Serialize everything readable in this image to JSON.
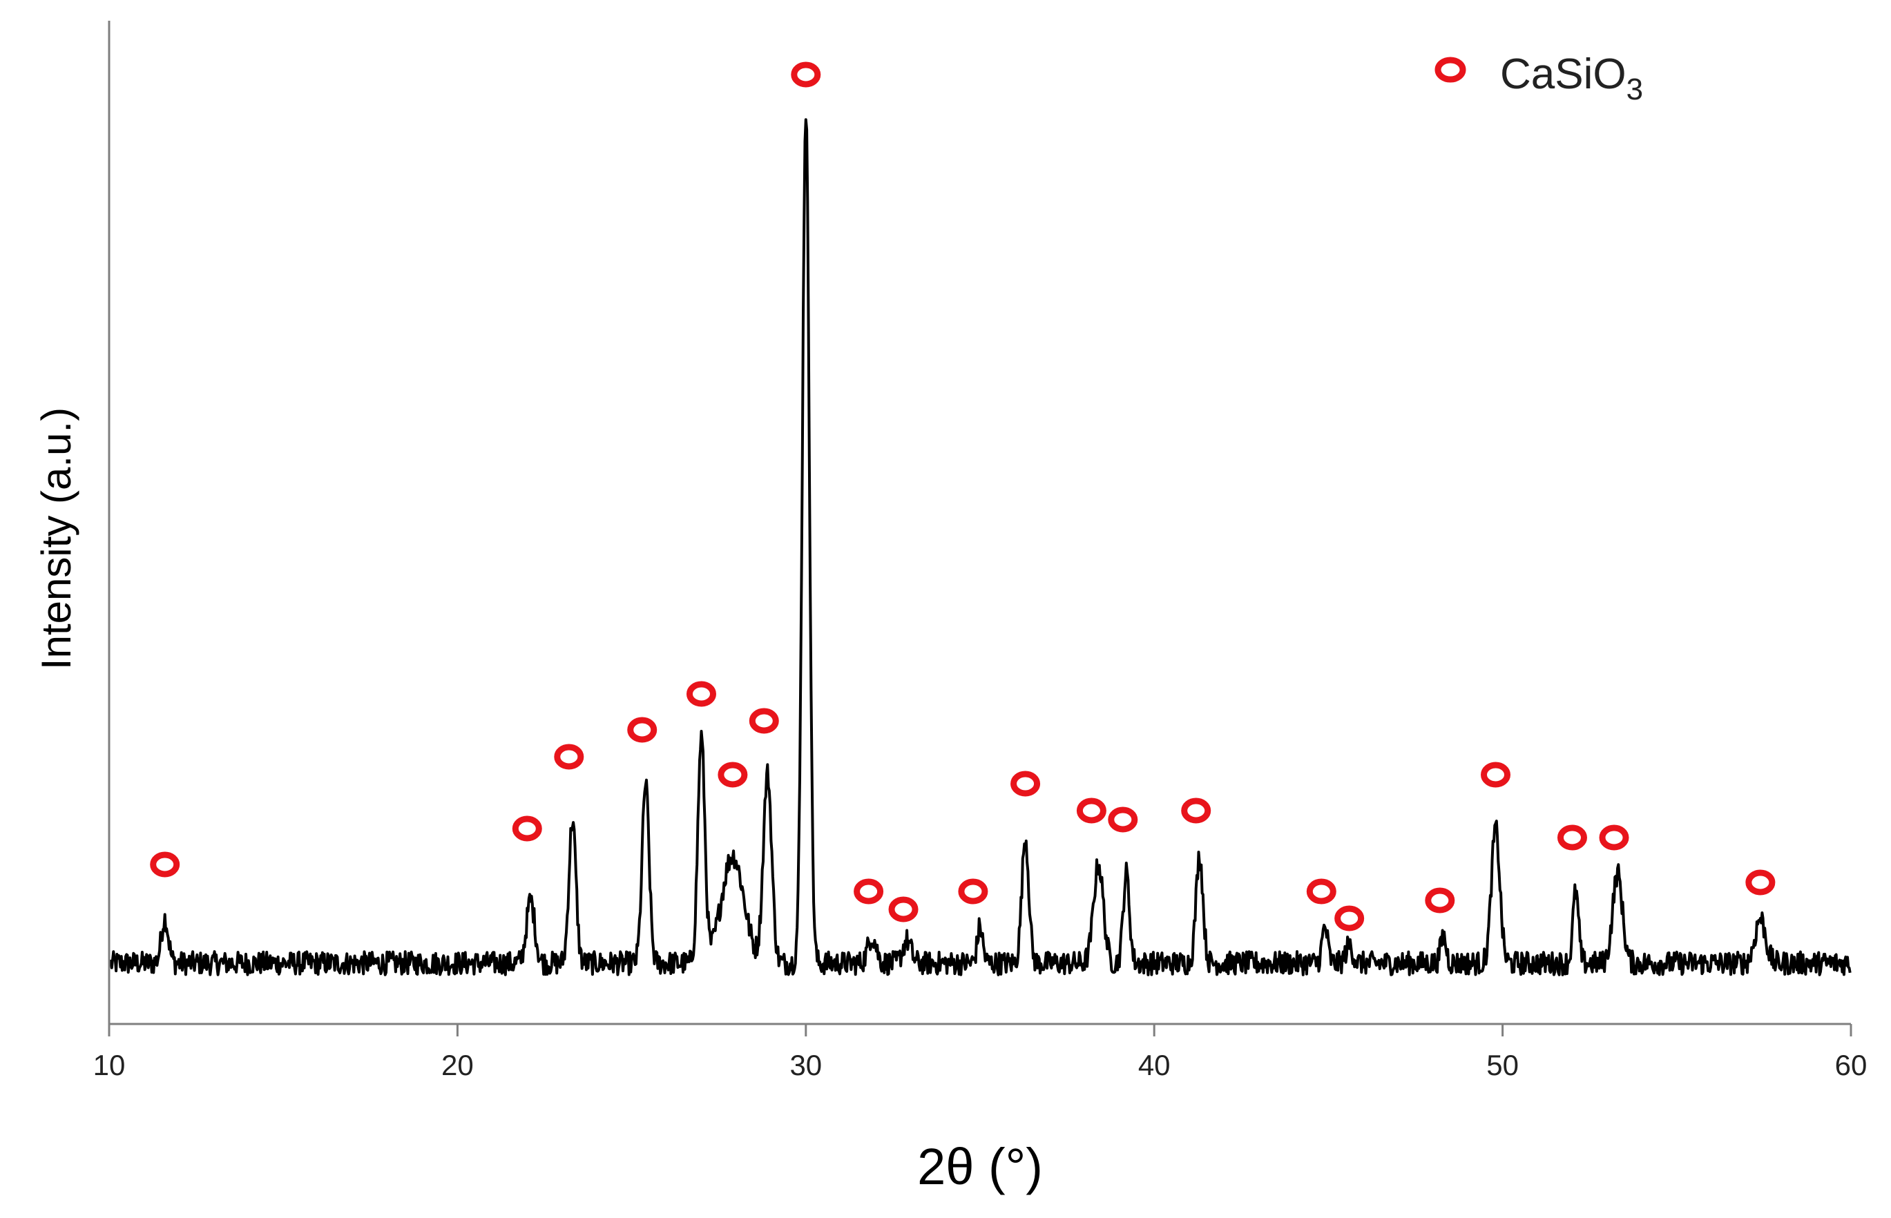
{
  "chart_data": {
    "type": "line",
    "xlabel": "2θ (°)",
    "ylabel": "Intensity  (a.u.)",
    "xlim": [
      10,
      60
    ],
    "xticks": [
      10,
      20,
      30,
      40,
      50,
      60
    ],
    "yticks": [],
    "grid": false,
    "legend_position": "top-right",
    "colors": {
      "line": "#000000",
      "marker": "#e8141b",
      "axis": "#7f7f7f"
    },
    "series": [
      {
        "type": "line",
        "baseline": 0.05,
        "noise": 0.013,
        "peaks": [
          {
            "x": 11.6,
            "h": 0.05,
            "w": 0.1
          },
          {
            "x": 22.1,
            "h": 0.07,
            "w": 0.12
          },
          {
            "x": 23.3,
            "h": 0.16,
            "w": 0.1
          },
          {
            "x": 25.4,
            "h": 0.2,
            "w": 0.1
          },
          {
            "x": 27.0,
            "h": 0.25,
            "w": 0.1
          },
          {
            "x": 27.9,
            "h": 0.12,
            "w": 0.32
          },
          {
            "x": 28.9,
            "h": 0.21,
            "w": 0.12
          },
          {
            "x": 30.0,
            "h": 0.95,
            "w": 0.1
          },
          {
            "x": 31.9,
            "h": 0.03,
            "w": 0.12
          },
          {
            "x": 32.9,
            "h": 0.025,
            "w": 0.12
          },
          {
            "x": 35.0,
            "h": 0.04,
            "w": 0.08
          },
          {
            "x": 36.3,
            "h": 0.14,
            "w": 0.1
          },
          {
            "x": 38.4,
            "h": 0.11,
            "w": 0.14
          },
          {
            "x": 39.2,
            "h": 0.1,
            "w": 0.09
          },
          {
            "x": 41.3,
            "h": 0.12,
            "w": 0.1
          },
          {
            "x": 44.9,
            "h": 0.04,
            "w": 0.08
          },
          {
            "x": 45.6,
            "h": 0.02,
            "w": 0.1
          },
          {
            "x": 48.3,
            "h": 0.03,
            "w": 0.08
          },
          {
            "x": 49.8,
            "h": 0.15,
            "w": 0.12
          },
          {
            "x": 52.1,
            "h": 0.08,
            "w": 0.08
          },
          {
            "x": 53.3,
            "h": 0.1,
            "w": 0.14
          },
          {
            "x": 57.4,
            "h": 0.05,
            "w": 0.15
          }
        ]
      },
      {
        "name": "CaSiO3",
        "type": "marker",
        "points": [
          {
            "x": 11.6,
            "y": 0.16
          },
          {
            "x": 22.0,
            "y": 0.2
          },
          {
            "x": 23.2,
            "y": 0.28
          },
          {
            "x": 25.3,
            "y": 0.31
          },
          {
            "x": 27.0,
            "y": 0.35
          },
          {
            "x": 27.9,
            "y": 0.26
          },
          {
            "x": 28.8,
            "y": 0.32
          },
          {
            "x": 30.0,
            "y": 1.04
          },
          {
            "x": 31.8,
            "y": 0.13
          },
          {
            "x": 32.8,
            "y": 0.11
          },
          {
            "x": 34.8,
            "y": 0.13
          },
          {
            "x": 36.3,
            "y": 0.25
          },
          {
            "x": 38.2,
            "y": 0.22
          },
          {
            "x": 39.1,
            "y": 0.21
          },
          {
            "x": 41.2,
            "y": 0.22
          },
          {
            "x": 44.8,
            "y": 0.13
          },
          {
            "x": 45.6,
            "y": 0.1
          },
          {
            "x": 48.2,
            "y": 0.12
          },
          {
            "x": 49.8,
            "y": 0.26
          },
          {
            "x": 52.0,
            "y": 0.19
          },
          {
            "x": 53.2,
            "y": 0.19
          },
          {
            "x": 57.4,
            "y": 0.14
          }
        ]
      }
    ],
    "legend": {
      "label_main": "CaSiO",
      "label_sub": "3"
    }
  }
}
